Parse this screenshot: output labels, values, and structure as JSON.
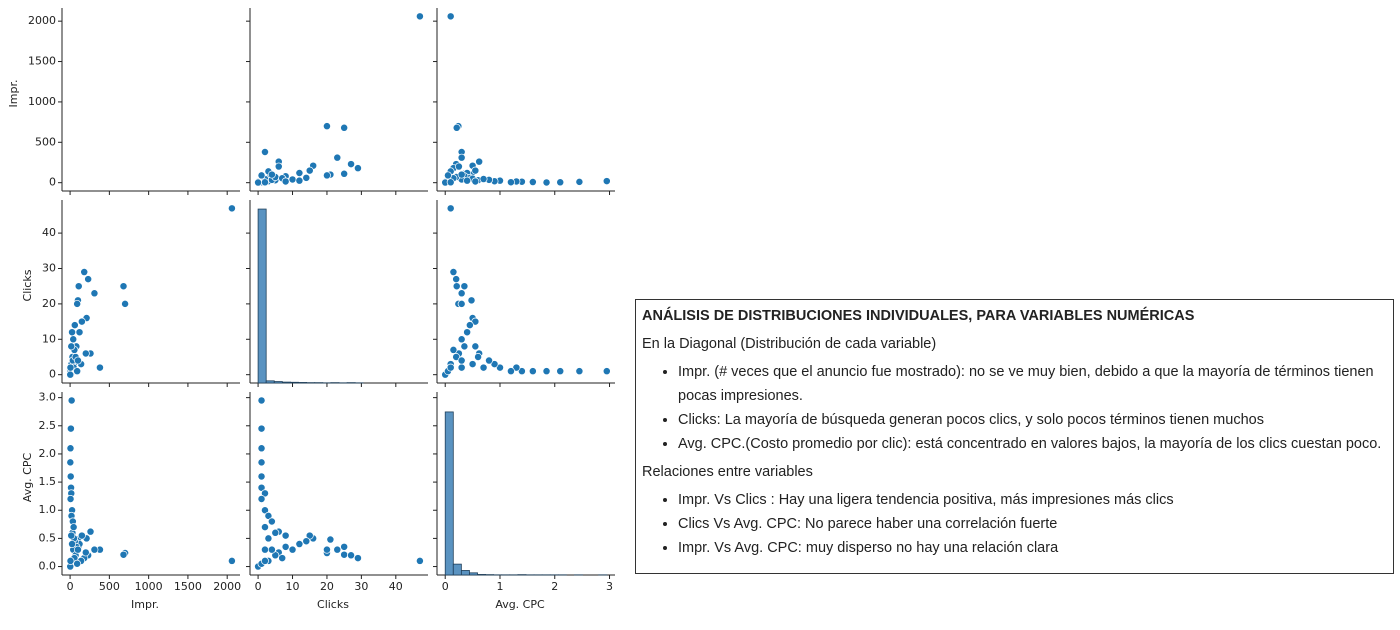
{
  "chart_data": {
    "type": "pairplot",
    "color": "#1f77b4",
    "hist_color": "#5a93c1",
    "variables": [
      {
        "name": "Impr.",
        "values": [
          2060,
          700,
          680,
          380,
          310,
          260,
          230,
          180,
          110,
          210,
          100,
          90,
          150,
          120,
          60,
          200,
          80,
          40,
          30,
          50,
          20,
          10,
          5,
          3,
          8,
          12,
          15,
          6,
          25,
          18,
          35,
          45,
          10,
          2,
          70,
          55,
          140,
          90,
          25,
          15,
          100,
          5
        ],
        "lim": [
          -103,
          2163
        ],
        "ticks": [
          0,
          500,
          1000,
          1500,
          2000
        ]
      },
      {
        "name": "Clicks",
        "values": [
          47,
          20,
          25,
          2,
          23,
          6,
          27,
          29,
          25,
          16,
          21,
          20,
          15,
          12,
          14,
          6,
          8,
          10,
          5,
          3,
          1,
          1,
          1,
          1,
          1,
          1,
          2,
          1,
          2,
          3,
          4,
          2,
          0,
          0,
          5,
          7,
          3,
          1,
          12,
          8,
          4,
          2
        ],
        "lim": [
          -2.35,
          49.35
        ],
        "ticks": [
          0,
          10,
          20,
          30,
          40
        ],
        "hist": {
          "bins": [
            0,
            2.35,
            4.7,
            7.05,
            9.4,
            11.75,
            14.1,
            16.45,
            18.8,
            21.15,
            23.5,
            25.85,
            28.2,
            30.55,
            32.9,
            35.25,
            37.6,
            39.95,
            42.3,
            44.65,
            47
          ],
          "counts": [
            960,
            12,
            8,
            5,
            4,
            3,
            2,
            2,
            1,
            2,
            1,
            2,
            1,
            0,
            0,
            0,
            0,
            0,
            0,
            0,
            1
          ],
          "ylim": [
            0,
            1010
          ]
        }
      },
      {
        "name": "Avg. CPC",
        "values": [
          0.1,
          0.24,
          0.21,
          0.3,
          0.3,
          0.62,
          0.2,
          0.15,
          0.35,
          0.5,
          0.48,
          0.3,
          0.55,
          0.4,
          0.45,
          0.25,
          0.35,
          0.3,
          0.6,
          0.5,
          2.95,
          2.45,
          2.1,
          1.85,
          1.6,
          1.4,
          1.3,
          1.2,
          1.0,
          0.9,
          0.8,
          0.7,
          0,
          0,
          0.2,
          0.15,
          0.1,
          0.05,
          0.4,
          0.55,
          0.3,
          0.1
        ],
        "lim": [
          -0.15,
          3.1
        ],
        "ticks": [
          {
            "value": 0,
            "label": "0.0"
          },
          {
            "value": 0.5,
            "label": "0.5"
          },
          {
            "value": 1,
            "label": "1.0"
          },
          {
            "value": 1.5,
            "label": "1.5"
          },
          {
            "value": 2,
            "label": "2.0"
          },
          {
            "value": 2.5,
            "label": "2.5"
          },
          {
            "value": 3,
            "label": "3.0"
          }
        ],
        "xticks": [
          0,
          1,
          2,
          3
        ],
        "hist": {
          "bins": [
            0,
            0.1475,
            0.295,
            0.4425,
            0.59,
            0.7375,
            0.885,
            1.0325,
            1.18,
            1.3275,
            1.475,
            1.6225,
            1.77,
            1.9175,
            2.065,
            2.2125,
            2.36,
            2.5075,
            2.655,
            2.8025,
            2.95
          ],
          "counts": [
            900,
            60,
            25,
            12,
            3,
            2,
            1,
            1,
            1,
            2,
            1,
            1,
            1,
            1,
            1,
            0,
            1,
            0,
            0,
            1
          ],
          "ylim": [
            0,
            1010
          ]
        }
      }
    ]
  },
  "notes": {
    "title": "ANÁLISIS DE DISTRIBUCIONES INDIVIDUALES, PARA VARIABLES NUMÉRICAS",
    "sections": [
      {
        "heading": "En la Diagonal (Distribución de cada variable)",
        "items": [
          "Impr. (# veces que el anuncio fue mostrado): no se ve muy bien, debido a que la mayoría de términos tienen pocas impresiones.",
          "Clicks: La mayoría de búsqueda generan pocos clics, y solo pocos términos tienen muchos",
          "Avg. CPC.(Costo promedio por clic): está concentrado en valores bajos, la mayoría de los clics cuestan poco."
        ]
      },
      {
        "heading": "Relaciones entre variables",
        "items": [
          "Impr. Vs Clics : Hay una ligera tendencia positiva, más impresiones más clics",
          "Clics Vs Avg. CPC: No parece haber una correlación fuerte",
          "Impr. Vs Avg. CPC: muy disperso no hay una relación clara"
        ]
      }
    ]
  }
}
